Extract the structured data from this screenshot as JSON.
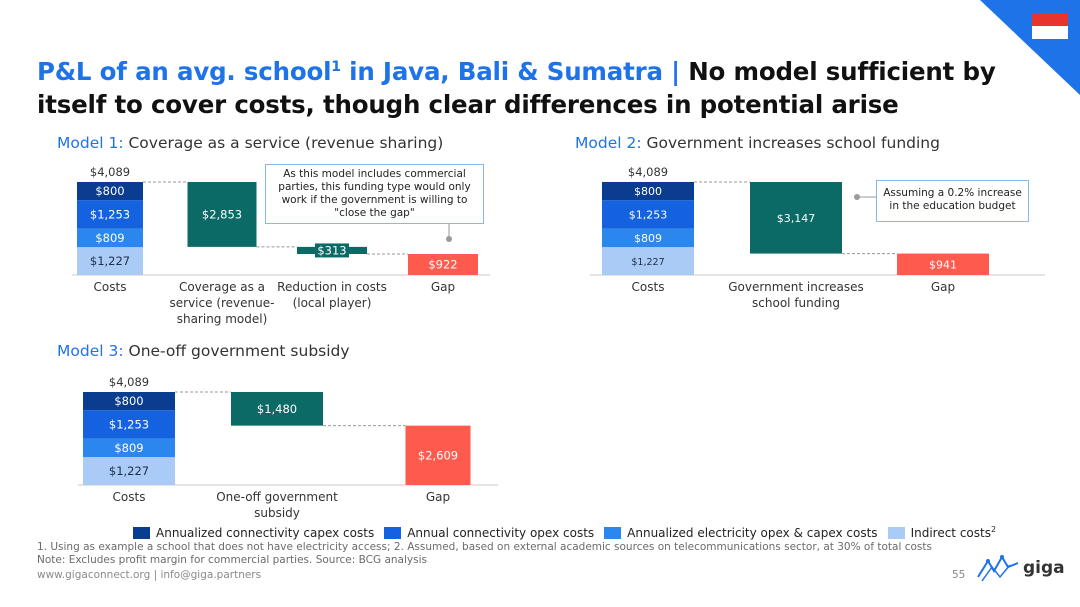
{
  "title": {
    "main_blue": "P&L of an avg. school",
    "sup": "1",
    "main_blue2": " in Java, Bali & Sumatra | ",
    "main_black": "No model sufficient by itself to cover costs, though clear differences in potential arise"
  },
  "colors": {
    "capex": "#0a3d8f",
    "opex": "#1462e0",
    "electricity": "#2b86ee",
    "indirect": "#a9cbf6",
    "teal": "#0b6a66",
    "gap": "#ff5a4e",
    "accent": "#1e73e8"
  },
  "models": [
    {
      "prefix": "Model 1:",
      "name": " Coverage as a service (revenue sharing)",
      "callout": "As this model includes commercial parties, this funding type would only work if the government is willing to \"close the gap\""
    },
    {
      "prefix": "Model 2:",
      "name": " Government increases school funding",
      "callout": "Assuming a 0.2% increase in the education budget"
    },
    {
      "prefix": "Model 3:",
      "name": " One-off government subsidy",
      "callout": ""
    }
  ],
  "chart_data": [
    {
      "type": "bar",
      "subtype": "waterfall",
      "title": "Model 1: Coverage as a service (revenue sharing)",
      "total_label": "$4,089",
      "costs": {
        "label": "Costs",
        "stack": [
          {
            "series": "Indirect costs",
            "value": 1227,
            "label": "$1,227"
          },
          {
            "series": "Annualized electricity opex & capex costs",
            "value": 809,
            "label": "$809"
          },
          {
            "series": "Annual connectivity opex costs",
            "value": 1253,
            "label": "$1,253"
          },
          {
            "series": "Annualized connectivity capex costs",
            "value": 800,
            "label": "$800"
          }
        ]
      },
      "steps": [
        {
          "label": [
            "Coverage as a",
            "service (revenue-",
            "sharing model)"
          ],
          "value": 2853,
          "value_label": "$2,853",
          "kind": "funding"
        },
        {
          "label": [
            "Reduction in costs",
            "(local player)"
          ],
          "value": 313,
          "value_label": "$313",
          "kind": "funding"
        },
        {
          "label": [
            "Gap"
          ],
          "value": 922,
          "value_label": "$922",
          "kind": "gap"
        }
      ]
    },
    {
      "type": "bar",
      "subtype": "waterfall",
      "title": "Model 2: Government increases school funding",
      "total_label": "$4,089",
      "costs": {
        "label": "Costs",
        "stack": [
          {
            "series": "Indirect costs",
            "value": 1227,
            "label": "$1,227"
          },
          {
            "series": "Annualized electricity opex & capex costs",
            "value": 809,
            "label": "$809"
          },
          {
            "series": "Annual connectivity opex costs",
            "value": 1253,
            "label": "$1,253"
          },
          {
            "series": "Annualized connectivity capex costs",
            "value": 800,
            "label": "$800"
          }
        ]
      },
      "steps": [
        {
          "label": [
            "Government increases",
            "school funding"
          ],
          "value": 3147,
          "value_label": "$3,147",
          "kind": "funding"
        },
        {
          "label": [
            "Gap"
          ],
          "value": 941,
          "value_label": "$941",
          "kind": "gap"
        }
      ]
    },
    {
      "type": "bar",
      "subtype": "waterfall",
      "title": "Model 3: One-off government subsidy",
      "total_label": "$4,089",
      "costs": {
        "label": "Costs",
        "stack": [
          {
            "series": "Indirect costs",
            "value": 1227,
            "label": "$1,227"
          },
          {
            "series": "Annualized electricity opex & capex costs",
            "value": 809,
            "label": "$809"
          },
          {
            "series": "Annual connectivity opex costs",
            "value": 1253,
            "label": "$1,253"
          },
          {
            "series": "Annualized connectivity capex costs",
            "value": 800,
            "label": "$800"
          }
        ]
      },
      "steps": [
        {
          "label": [
            "One-off government",
            "subsidy"
          ],
          "value": 1480,
          "value_label": "$1,480",
          "kind": "funding"
        },
        {
          "label": [
            "Gap"
          ],
          "value": 2609,
          "value_label": "$2,609",
          "kind": "gap"
        }
      ]
    }
  ],
  "legend": [
    {
      "label": "Annualized connectivity capex costs",
      "color": "#0a3d8f"
    },
    {
      "label": "Annual connectivity opex costs",
      "color": "#1462e0"
    },
    {
      "label": "Annualized electricity opex & capex costs",
      "color": "#2b86ee"
    },
    {
      "label": "Indirect costs",
      "sup": "2",
      "color": "#a9cbf6"
    }
  ],
  "footnotes": {
    "line1": "1. Using as example a school that does not have electricity access; 2. Assumed, based on external academic sources on telecommunications sector, at 30% of total costs",
    "line2": "Note: Excludes profit margin for commercial parties. Source: BCG analysis"
  },
  "footer": "www.gigaconnect.org  |  info@giga.partners",
  "page_number": "55",
  "logo_text": "giga",
  "icons": [
    "indonesia-flag-icon",
    "giga-logo-icon"
  ]
}
